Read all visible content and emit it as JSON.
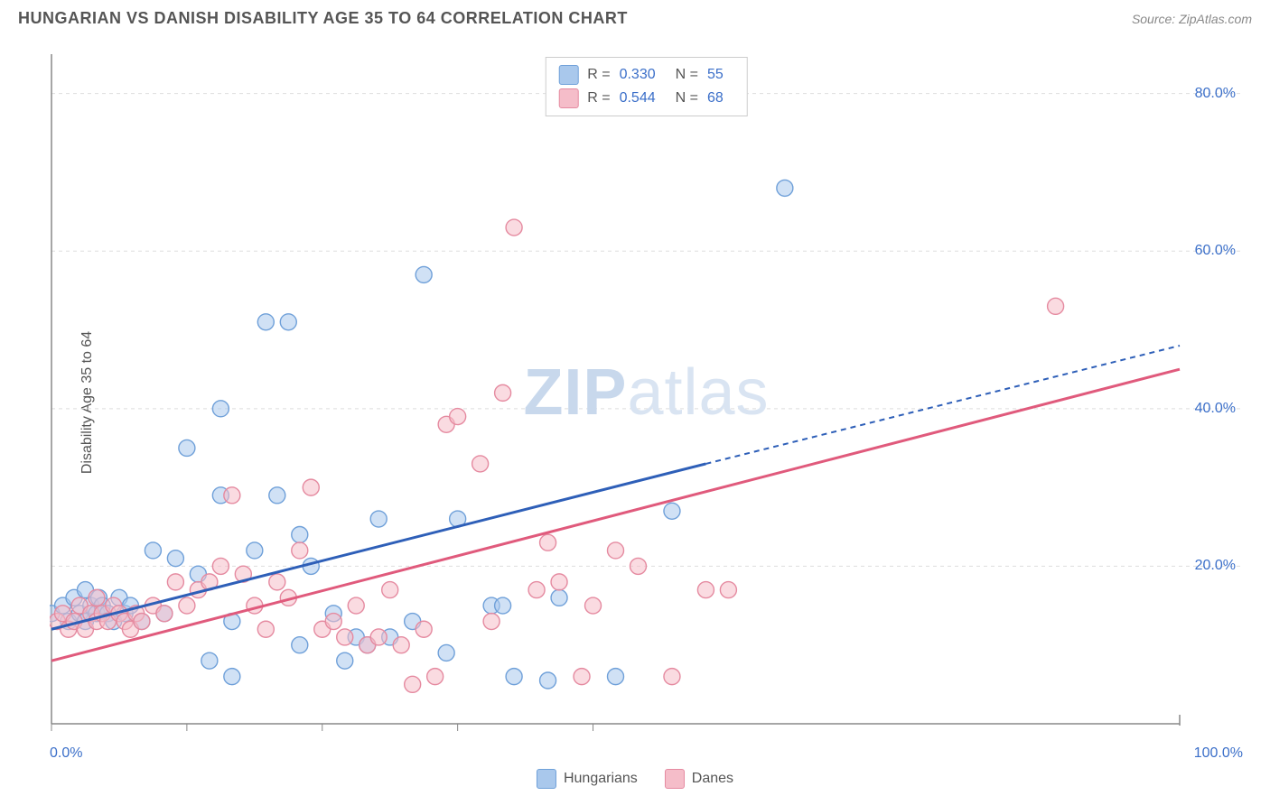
{
  "title": "HUNGARIAN VS DANISH DISABILITY AGE 35 TO 64 CORRELATION CHART",
  "source_prefix": "Source: ",
  "source_name": "ZipAtlas.com",
  "ylabel": "Disability Age 35 to 64",
  "watermark_bold": "ZIP",
  "watermark_light": "atlas",
  "chart": {
    "type": "scatter",
    "xlim": [
      0,
      100
    ],
    "ylim": [
      0,
      85
    ],
    "yticks": [
      20,
      40,
      60,
      80
    ],
    "ytick_labels": [
      "20.0%",
      "40.0%",
      "60.0%",
      "80.0%"
    ],
    "xtick_positions": [
      0,
      12,
      24,
      36,
      48
    ],
    "x_axis_min_label": "0.0%",
    "x_axis_max_label": "100.0%",
    "grid_color": "#dddddd",
    "axis_color": "#888888",
    "background_color": "#ffffff",
    "marker_radius": 9,
    "marker_stroke_width": 1.4,
    "series": [
      {
        "name": "Hungarians",
        "fill_color": "#a9c8ec",
        "stroke_color": "#6fa0d9",
        "fill_opacity": 0.55,
        "R": "0.330",
        "N": "55",
        "trend": {
          "color": "#2e5fb8",
          "width": 3,
          "x1": 0,
          "y1": 12,
          "x2": 58,
          "y2": 33,
          "x3": 100,
          "y3": 48,
          "dash": "6,5"
        },
        "points": [
          [
            0,
            14
          ],
          [
            1,
            15
          ],
          [
            1.5,
            13
          ],
          [
            2,
            16
          ],
          [
            2.5,
            14
          ],
          [
            3,
            17
          ],
          [
            3,
            13
          ],
          [
            3.5,
            15
          ],
          [
            4,
            14
          ],
          [
            4.2,
            16
          ],
          [
            4.5,
            15
          ],
          [
            5,
            14
          ],
          [
            5.5,
            13
          ],
          [
            6,
            16
          ],
          [
            6.5,
            14
          ],
          [
            7,
            15
          ],
          [
            8,
            13
          ],
          [
            9,
            22
          ],
          [
            10,
            14
          ],
          [
            11,
            21
          ],
          [
            12,
            35
          ],
          [
            13,
            19
          ],
          [
            14,
            8
          ],
          [
            15,
            40
          ],
          [
            15,
            29
          ],
          [
            16,
            13
          ],
          [
            16,
            6
          ],
          [
            18,
            22
          ],
          [
            19,
            51
          ],
          [
            20,
            29
          ],
          [
            21,
            51
          ],
          [
            22,
            10
          ],
          [
            22,
            24
          ],
          [
            23,
            20
          ],
          [
            25,
            14
          ],
          [
            26,
            8
          ],
          [
            27,
            11
          ],
          [
            28,
            10
          ],
          [
            29,
            26
          ],
          [
            30,
            11
          ],
          [
            32,
            13
          ],
          [
            33,
            57
          ],
          [
            35,
            9
          ],
          [
            36,
            26
          ],
          [
            39,
            15
          ],
          [
            40,
            15
          ],
          [
            41,
            6
          ],
          [
            44,
            5.5
          ],
          [
            45,
            16
          ],
          [
            50,
            6
          ],
          [
            55,
            27
          ],
          [
            65,
            68
          ]
        ]
      },
      {
        "name": "Danes",
        "fill_color": "#f5bdc9",
        "stroke_color": "#e58aa0",
        "fill_opacity": 0.55,
        "R": "0.544",
        "N": "68",
        "trend": {
          "color": "#e05a7c",
          "width": 3,
          "x1": 0,
          "y1": 8,
          "x2": 100,
          "y2": 45
        },
        "points": [
          [
            0.5,
            13
          ],
          [
            1,
            14
          ],
          [
            1.5,
            12
          ],
          [
            2,
            13
          ],
          [
            2.5,
            15
          ],
          [
            3,
            12
          ],
          [
            3.5,
            14
          ],
          [
            4,
            13
          ],
          [
            4,
            16
          ],
          [
            4.5,
            14
          ],
          [
            5,
            13
          ],
          [
            5.5,
            15
          ],
          [
            6,
            14
          ],
          [
            6.5,
            13
          ],
          [
            7,
            12
          ],
          [
            7.5,
            14
          ],
          [
            8,
            13
          ],
          [
            9,
            15
          ],
          [
            10,
            14
          ],
          [
            11,
            18
          ],
          [
            12,
            15
          ],
          [
            13,
            17
          ],
          [
            14,
            18
          ],
          [
            15,
            20
          ],
          [
            16,
            29
          ],
          [
            17,
            19
          ],
          [
            18,
            15
          ],
          [
            19,
            12
          ],
          [
            20,
            18
          ],
          [
            21,
            16
          ],
          [
            22,
            22
          ],
          [
            23,
            30
          ],
          [
            24,
            12
          ],
          [
            25,
            13
          ],
          [
            26,
            11
          ],
          [
            27,
            15
          ],
          [
            28,
            10
          ],
          [
            29,
            11
          ],
          [
            30,
            17
          ],
          [
            31,
            10
          ],
          [
            32,
            5
          ],
          [
            33,
            12
          ],
          [
            34,
            6
          ],
          [
            35,
            38
          ],
          [
            36,
            39
          ],
          [
            38,
            33
          ],
          [
            39,
            13
          ],
          [
            40,
            42
          ],
          [
            41,
            63
          ],
          [
            43,
            17
          ],
          [
            44,
            23
          ],
          [
            45,
            18
          ],
          [
            47,
            6
          ],
          [
            48,
            15
          ],
          [
            50,
            22
          ],
          [
            52,
            20
          ],
          [
            55,
            6
          ],
          [
            58,
            17
          ],
          [
            60,
            17
          ],
          [
            89,
            53
          ]
        ]
      }
    ]
  },
  "legend": {
    "hungarians_label": "Hungarians",
    "danes_label": "Danes",
    "R_label": "R =",
    "N_label": "N ="
  }
}
